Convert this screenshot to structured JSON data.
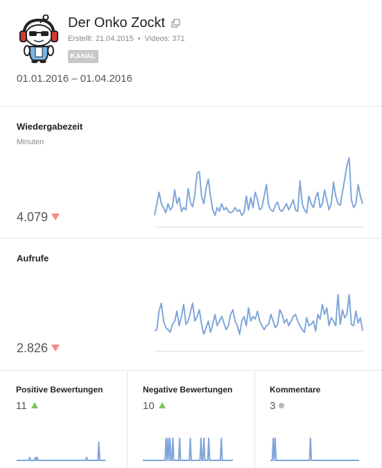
{
  "channel": {
    "name": "Der Onko Zockt",
    "created": "Erstellt: 21.04.2015",
    "videos": "Videos: 371",
    "badge": "KANAL",
    "avatar_icon": "reddit-alien-headphones-sunglasses-icon",
    "external_icon": "external-link-icon"
  },
  "date_range": "01.01.2016 – 01.04.2016",
  "colors": {
    "line": "#7ea6d8",
    "axis": "#dddddd",
    "down": "#f28a8a",
    "up": "#7cc55d",
    "neutral": "#b8b8b8",
    "badge": "#c8c8c8"
  },
  "metrics": {
    "watch_time": {
      "title": "Wiedergabezeit",
      "unit": "Minuten",
      "value": "4.079",
      "trend": "down"
    },
    "views": {
      "title": "Aufrufe",
      "value": "2.826",
      "trend": "down"
    },
    "likes": {
      "title": "Positive Bewertungen",
      "value": "11",
      "trend": "up"
    },
    "dislikes": {
      "title": "Negative Bewertungen",
      "value": "10",
      "trend": "up"
    },
    "comments": {
      "title": "Kommentare",
      "value": "3",
      "trend": "neutral"
    }
  },
  "chart_data": [
    {
      "type": "line",
      "name": "watch_time_sparkline",
      "ylim": [
        0,
        95
      ],
      "values": [
        15,
        30,
        45,
        30,
        25,
        18,
        30,
        22,
        26,
        48,
        30,
        38,
        20,
        25,
        22,
        50,
        32,
        26,
        42,
        70,
        72,
        40,
        30,
        50,
        62,
        40,
        22,
        15,
        25,
        20,
        30,
        22,
        25,
        20,
        18,
        20,
        25,
        20,
        22,
        15,
        18,
        40,
        22,
        38,
        25,
        45,
        35,
        22,
        25,
        40,
        55,
        28,
        22,
        20,
        28,
        32,
        22,
        20,
        25,
        30,
        22,
        28,
        35,
        22,
        20,
        60,
        30,
        22,
        18,
        40,
        30,
        25,
        38,
        45,
        25,
        30,
        48,
        35,
        22,
        30,
        58,
        40,
        30,
        28,
        45,
        62,
        80,
        90,
        35,
        25,
        30,
        55,
        40,
        30
      ]
    },
    {
      "type": "line",
      "name": "views_sparkline",
      "ylim": [
        0,
        110
      ],
      "values": [
        30,
        32,
        60,
        72,
        45,
        35,
        32,
        28,
        40,
        45,
        60,
        38,
        52,
        70,
        40,
        45,
        58,
        72,
        45,
        52,
        62,
        40,
        25,
        35,
        45,
        28,
        40,
        55,
        38,
        45,
        52,
        42,
        32,
        38,
        55,
        62,
        45,
        38,
        25,
        45,
        52,
        38,
        65,
        45,
        52,
        48,
        60,
        45,
        38,
        32,
        38,
        40,
        55,
        45,
        35,
        40,
        62,
        55,
        42,
        48,
        38,
        45,
        52,
        55,
        45,
        38,
        32,
        28,
        50,
        38,
        40,
        45,
        30,
        55,
        48,
        70,
        55,
        65,
        38,
        50,
        45,
        38,
        85,
        40,
        62,
        50,
        55,
        85,
        40,
        38,
        60,
        42,
        50,
        30
      ]
    },
    {
      "type": "line",
      "name": "likes_sparkline",
      "ylim": [
        0,
        4
      ],
      "values": [
        0,
        0,
        0,
        0,
        0,
        0,
        0,
        0,
        0,
        0,
        0,
        0,
        0,
        0,
        0.5,
        0,
        0,
        0,
        0,
        0,
        0.5,
        0,
        0.5,
        0,
        0,
        0,
        0,
        0,
        0,
        0,
        0,
        0,
        0,
        0,
        0,
        0,
        0,
        0,
        0,
        0,
        0,
        0,
        0,
        0,
        0,
        0,
        0,
        0,
        0,
        0,
        0,
        0,
        0,
        0,
        0,
        0,
        0,
        0,
        0,
        0,
        0,
        0,
        0,
        0,
        0,
        0,
        0,
        0,
        0,
        0,
        0,
        0,
        0,
        0,
        0,
        0.5,
        0,
        0,
        0,
        0,
        0,
        0,
        0,
        0,
        0,
        0,
        0,
        0,
        3,
        0,
        0,
        0,
        0,
        0,
        0,
        0
      ]
    },
    {
      "type": "line",
      "name": "dislikes_sparkline",
      "ylim": [
        0,
        1.1
      ],
      "values": [
        0,
        0,
        0,
        0,
        0,
        0,
        0,
        0,
        0,
        0,
        0,
        0,
        0,
        0,
        0,
        0,
        0,
        0,
        0,
        0,
        0,
        0,
        0,
        0,
        1,
        0,
        1,
        0,
        1,
        0,
        0,
        1,
        0,
        0,
        0,
        0,
        0,
        0,
        1,
        0,
        0,
        0,
        0,
        0,
        0,
        0,
        0,
        0,
        0,
        1,
        0,
        0,
        0,
        0,
        0,
        0,
        0,
        0,
        0,
        0,
        1,
        0,
        0,
        1,
        0,
        0,
        0,
        0,
        1,
        0,
        0,
        0,
        0,
        0,
        0,
        0,
        0,
        0,
        0,
        0,
        0,
        1,
        0,
        0,
        0,
        0,
        0,
        0,
        0,
        0,
        0,
        0,
        0,
        0
      ]
    },
    {
      "type": "line",
      "name": "comments_sparkline",
      "ylim": [
        0,
        1.1
      ],
      "values": [
        0,
        0,
        0,
        1,
        0,
        1,
        0,
        0,
        0,
        0,
        0,
        0,
        0,
        0,
        0,
        0,
        0,
        0,
        0,
        0,
        0,
        0,
        0,
        0,
        0,
        0,
        0,
        0,
        0,
        0,
        0,
        0,
        0,
        0,
        0,
        0,
        0,
        0,
        0,
        0,
        0,
        0,
        1,
        0,
        0,
        0,
        0,
        0,
        0,
        0,
        0,
        0,
        0,
        0,
        0,
        0,
        0,
        0,
        0,
        0,
        0,
        0,
        0,
        0,
        0,
        0,
        0,
        0,
        0,
        0,
        0,
        0,
        0,
        0,
        0,
        0,
        0,
        0,
        0,
        0,
        0,
        0,
        0,
        0,
        0,
        0,
        0,
        0,
        0,
        0,
        0,
        0,
        0,
        0
      ]
    }
  ]
}
